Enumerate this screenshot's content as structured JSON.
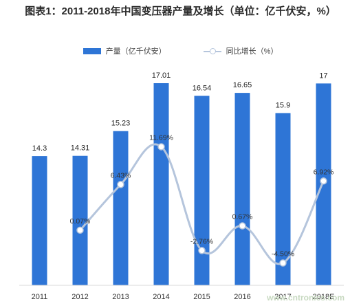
{
  "title": "图表1：2011-2018年中国变压器产量及增长（单位：亿千伏安，%）",
  "legend": {
    "bar": "产量（亿千伏安）",
    "line": "同比增长（%）"
  },
  "watermark": "www.cntronics.com",
  "colors": {
    "bar": "#2e75d6",
    "line": "#b5c5dc",
    "marker_fill": "#ffffff"
  },
  "chart_data": {
    "type": "bar",
    "categories": [
      "2011",
      "2012",
      "2013",
      "2014",
      "2015",
      "2016",
      "2017",
      "2018E"
    ],
    "series": [
      {
        "name": "产量（亿千伏安）",
        "type": "bar",
        "values": [
          14.3,
          14.31,
          15.23,
          17.01,
          16.54,
          16.65,
          15.9,
          17
        ],
        "labels": [
          "14.3",
          "14.31",
          "15.23",
          "17.01",
          "16.54",
          "16.65",
          "15.9",
          "17"
        ]
      },
      {
        "name": "同比增长（%）",
        "type": "line",
        "values": [
          null,
          0.07,
          6.43,
          11.69,
          -2.76,
          0.67,
          -4.5,
          6.92
        ],
        "labels": [
          "",
          "0.07%",
          "6.43%",
          "11.69%",
          "-2.76%",
          "0.67%",
          "-4.50%",
          "6.92%"
        ]
      }
    ],
    "grid": false,
    "legend_position": "top"
  }
}
